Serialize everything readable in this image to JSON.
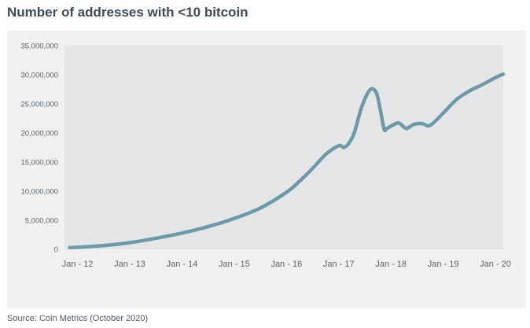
{
  "chart_data": {
    "type": "line",
    "title": "Number of addresses with <10 bitcoin",
    "source": "Source: Coin Metrics (October 2020)",
    "xlabel": "",
    "ylabel": "",
    "ylim": [
      0,
      35000000
    ],
    "y_ticks": [
      0,
      5000000,
      10000000,
      15000000,
      20000000,
      25000000,
      30000000,
      35000000
    ],
    "y_tick_labels": [
      "0",
      "5,000,000",
      "10,000,000",
      "15,000,000",
      "20,000,000",
      "25,000,000",
      "30,000,000",
      "35,000,000"
    ],
    "x_range": [
      2011.75,
      2020.15
    ],
    "x_ticks": [
      2012,
      2013,
      2014,
      2015,
      2016,
      2017,
      2018,
      2019,
      2020
    ],
    "x_tick_labels": [
      "Jan - 12",
      "Jan - 13",
      "Jan - 14",
      "Jan - 15",
      "Jan - 16",
      "Jan - 17",
      "Jan - 18",
      "Jan - 19",
      "Jan - 20"
    ],
    "grid": false,
    "legend": "none",
    "colors": {
      "line": "#6e9aa8",
      "plot_bg": "#e4e6e7",
      "panel_bg": "#f1f1f1"
    },
    "series": [
      {
        "name": "Addresses with <10 BTC",
        "x": [
          2011.85,
          2012.0,
          2012.5,
          2013.0,
          2013.5,
          2014.0,
          2014.5,
          2015.0,
          2015.5,
          2016.0,
          2016.25,
          2016.5,
          2016.75,
          2017.0,
          2017.1,
          2017.2,
          2017.3,
          2017.45,
          2017.6,
          2017.72,
          2017.8,
          2017.87,
          2017.92,
          2017.97,
          2018.05,
          2018.15,
          2018.28,
          2018.33,
          2018.45,
          2018.6,
          2018.75,
          2019.0,
          2019.25,
          2019.5,
          2019.75,
          2020.0,
          2020.15
        ],
        "values": [
          300000,
          350000,
          650000,
          1150000,
          1900000,
          2800000,
          3900000,
          5300000,
          7100000,
          9800000,
          11700000,
          13900000,
          16300000,
          17800000,
          17500000,
          18300000,
          20100000,
          24700000,
          27400000,
          26900000,
          23800000,
          20600000,
          20800000,
          21000000,
          21400000,
          21700000,
          20800000,
          20900000,
          21500000,
          21600000,
          21300000,
          23400000,
          25700000,
          27200000,
          28300000,
          29500000,
          30100000
        ]
      }
    ]
  }
}
